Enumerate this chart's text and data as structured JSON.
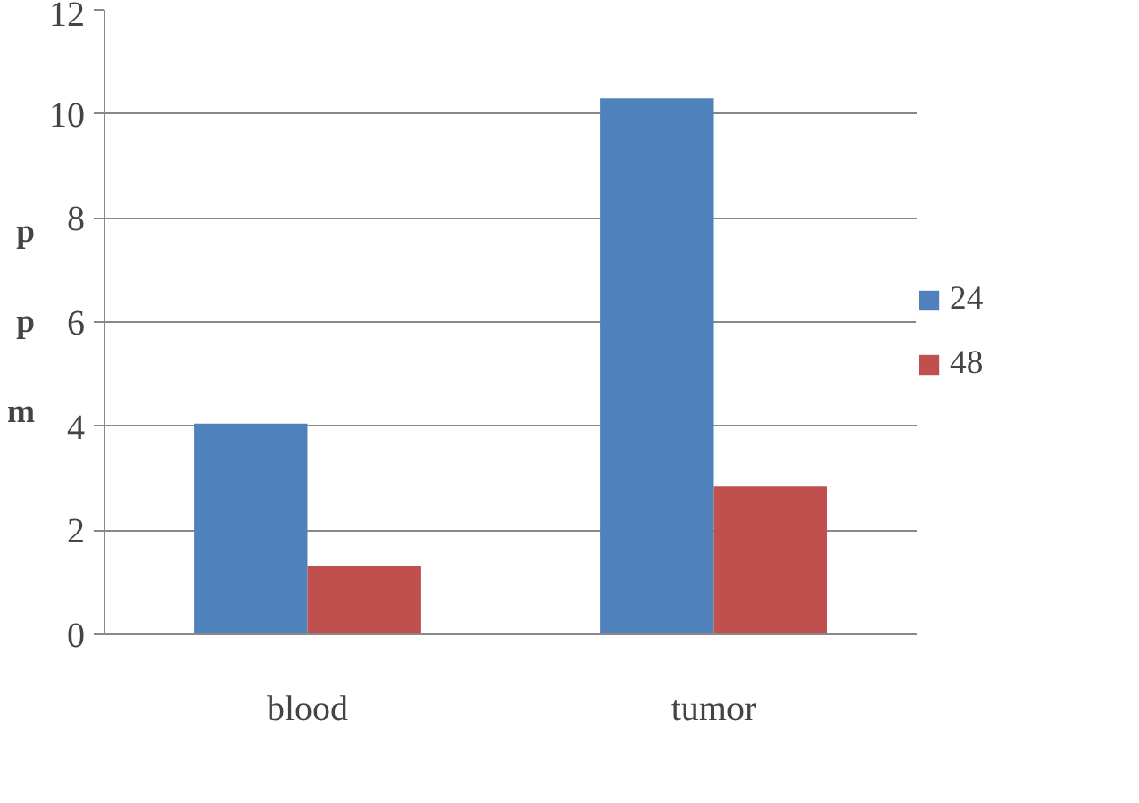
{
  "chart_data": {
    "type": "bar",
    "ylabel": "ppm",
    "categories": [
      "blood",
      "tumor"
    ],
    "series": [
      {
        "name": "24",
        "color": "#4f81bd",
        "values": [
          4.05,
          10.3
        ]
      },
      {
        "name": "48",
        "color": "#c0504d",
        "values": [
          1.32,
          2.84
        ]
      }
    ],
    "ylim": [
      0,
      12
    ],
    "yticks": [
      0,
      2,
      4,
      6,
      8,
      10,
      12
    ],
    "grid": "y",
    "legend": "right"
  }
}
